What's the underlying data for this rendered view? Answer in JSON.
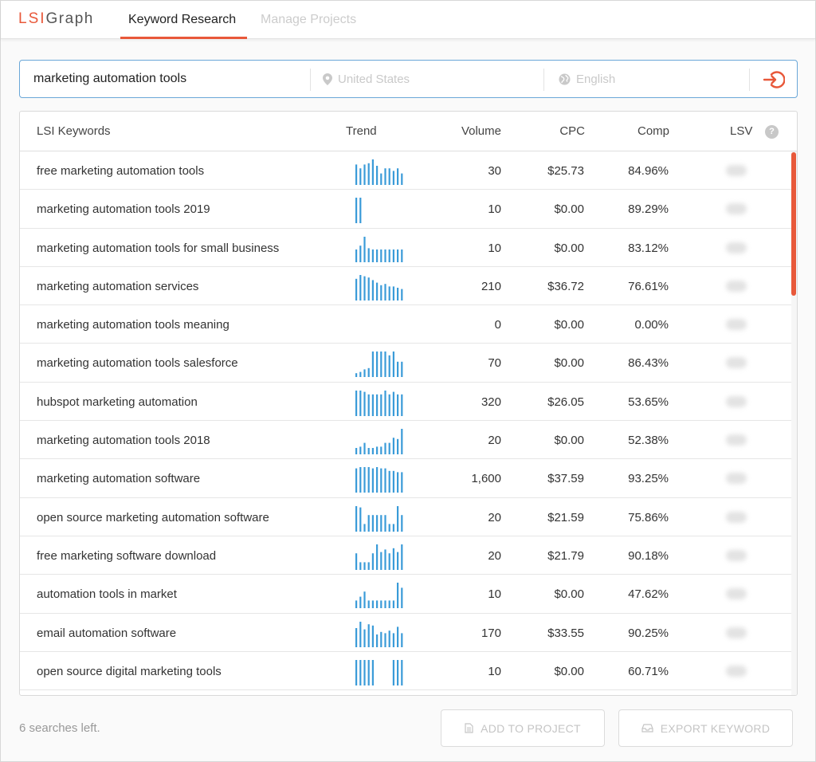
{
  "app": {
    "logo_prefix": "LSI",
    "logo_suffix": "Graph",
    "tabs": [
      {
        "label": "Keyword Research",
        "active": true
      },
      {
        "label": "Manage Projects",
        "active": false
      }
    ],
    "accent_color": "#e8583a",
    "trend_color": "#3a9bd8"
  },
  "search": {
    "query": "marketing automation tools",
    "location_placeholder": "United States",
    "language_placeholder": "English",
    "location_icon": "map-pin-icon",
    "language_icon": "globe-icon",
    "submit_icon": "sign-in-arrow-icon"
  },
  "table": {
    "headers": {
      "keyword": "LSI Keywords",
      "trend": "Trend",
      "volume": "Volume",
      "cpc": "CPC",
      "comp": "Comp",
      "lsv": "LSV",
      "help": "?"
    },
    "rows": [
      {
        "keyword": "free marketing automation tools",
        "volume": "30",
        "cpc": "$25.73",
        "comp": "84.96%",
        "trend": [
          0.8,
          0.65,
          0.8,
          0.85,
          1,
          0.75,
          0.45,
          0.65,
          0.65,
          0.55,
          0.65,
          0.45
        ]
      },
      {
        "keyword": "marketing automation tools 2019",
        "volume": "10",
        "cpc": "$0.00",
        "comp": "89.29%",
        "trend": [
          1,
          1,
          0,
          0,
          0,
          0,
          0,
          0,
          0,
          0,
          0,
          0
        ]
      },
      {
        "keyword": "marketing automation tools for small business",
        "volume": "10",
        "cpc": "$0.00",
        "comp": "83.12%",
        "trend": [
          0.5,
          0.65,
          1,
          0.55,
          0.5,
          0.5,
          0.5,
          0.5,
          0.5,
          0.5,
          0.5,
          0.5
        ]
      },
      {
        "keyword": "marketing automation services",
        "volume": "210",
        "cpc": "$36.72",
        "comp": "76.61%",
        "trend": [
          0.85,
          1,
          0.95,
          0.9,
          0.8,
          0.7,
          0.6,
          0.65,
          0.55,
          0.55,
          0.5,
          0.45
        ]
      },
      {
        "keyword": "marketing automation tools meaning",
        "volume": "0",
        "cpc": "$0.00",
        "comp": "0.00%",
        "trend": [
          0,
          0,
          0,
          0,
          0,
          0,
          0,
          0,
          0,
          0,
          0,
          0
        ]
      },
      {
        "keyword": "marketing automation tools salesforce",
        "volume": "70",
        "cpc": "$0.00",
        "comp": "86.43%",
        "trend": [
          0.15,
          0.2,
          0.3,
          0.35,
          1,
          1,
          1,
          1,
          0.85,
          1,
          0.6,
          0.6
        ]
      },
      {
        "keyword": "hubspot marketing automation",
        "volume": "320",
        "cpc": "$26.05",
        "comp": "53.65%",
        "trend": [
          1,
          1,
          0.95,
          0.85,
          0.85,
          0.85,
          0.85,
          1,
          0.85,
          0.95,
          0.85,
          0.85
        ]
      },
      {
        "keyword": "marketing automation tools 2018",
        "volume": "20",
        "cpc": "$0.00",
        "comp": "52.38%",
        "trend": [
          0.25,
          0.3,
          0.45,
          0.25,
          0.25,
          0.3,
          0.3,
          0.45,
          0.45,
          0.65,
          0.6,
          1
        ]
      },
      {
        "keyword": "marketing automation software",
        "volume": "1,600",
        "cpc": "$37.59",
        "comp": "93.25%",
        "trend": [
          0.95,
          1,
          1,
          1,
          0.95,
          1,
          0.95,
          0.95,
          0.85,
          0.85,
          0.8,
          0.8
        ]
      },
      {
        "keyword": "open source marketing automation software",
        "volume": "20",
        "cpc": "$21.59",
        "comp": "75.86%",
        "trend": [
          1,
          0.95,
          0.3,
          0.65,
          0.65,
          0.65,
          0.65,
          0.65,
          0.3,
          0.3,
          1,
          0.65
        ]
      },
      {
        "keyword": "free marketing software download",
        "volume": "20",
        "cpc": "$21.79",
        "comp": "90.18%",
        "trend": [
          0.65,
          0.3,
          0.3,
          0.3,
          0.65,
          1,
          0.7,
          0.8,
          0.65,
          0.85,
          0.7,
          1
        ]
      },
      {
        "keyword": "automation tools in market",
        "volume": "10",
        "cpc": "$0.00",
        "comp": "47.62%",
        "trend": [
          0.3,
          0.45,
          0.65,
          0.3,
          0.3,
          0.3,
          0.3,
          0.3,
          0.3,
          0.3,
          1,
          0.8
        ]
      },
      {
        "keyword": "email automation software",
        "volume": "170",
        "cpc": "$33.55",
        "comp": "90.25%",
        "trend": [
          0.75,
          1,
          0.7,
          0.9,
          0.85,
          0.5,
          0.6,
          0.55,
          0.65,
          0.55,
          0.8,
          0.55
        ]
      },
      {
        "keyword": "open source digital marketing tools",
        "volume": "10",
        "cpc": "$0.00",
        "comp": "60.71%",
        "trend": [
          1,
          1,
          1,
          1,
          1,
          0,
          0,
          0,
          0,
          1,
          1,
          1
        ]
      }
    ]
  },
  "footer": {
    "searches_left": "6 searches left.",
    "add_to_project": "ADD TO PROJECT",
    "export_keyword": "EXPORT KEYWORD",
    "add_icon": "document-icon",
    "export_icon": "tray-icon"
  }
}
